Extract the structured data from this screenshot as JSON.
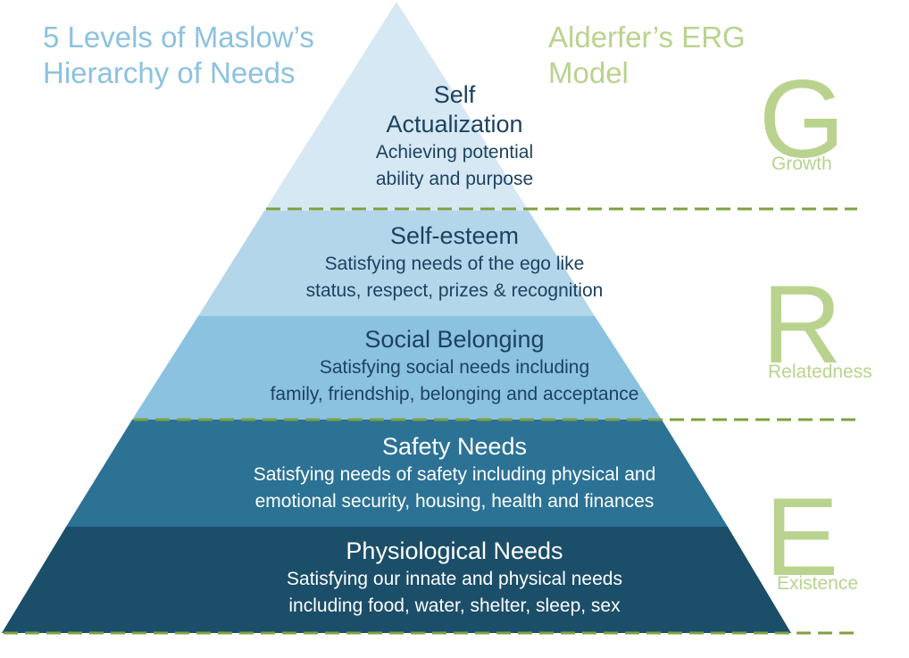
{
  "titles": {
    "maslow": "5 Levels of Maslow’s Hierarchy of Needs",
    "erg": "Alderfer’s ERG Model"
  },
  "levels": [
    {
      "title": "Self Actualization",
      "description": [
        "Achieving potential",
        "ability and purpose"
      ],
      "color": "#d6e8f4"
    },
    {
      "title": "Self-esteem",
      "description": [
        "Satisfying needs of the ego like",
        "status, respect, prizes & recognition"
      ],
      "color": "#b4d6ea"
    },
    {
      "title": "Social Belonging",
      "description": [
        "Satisfying social needs including",
        "family, friendship, belonging and acceptance"
      ],
      "color": "#8ac2e0"
    },
    {
      "title": "Safety Needs",
      "description": [
        "Satisfying needs of safety including physical and",
        "emotional security, housing, health and finances"
      ],
      "color": "#2b7295"
    },
    {
      "title": "Physiological Needs",
      "description": [
        "Satisfying our innate and physical needs",
        "including food, water, shelter, sleep, sex"
      ],
      "color": "#1b4e69"
    }
  ],
  "erg": [
    {
      "letter": "G",
      "label": "Growth"
    },
    {
      "letter": "R",
      "label": "Relatedness"
    },
    {
      "letter": "E",
      "label": "Existence"
    }
  ],
  "colors": {
    "divider": "#7fa03f",
    "maslow_text": "#8cc2e1",
    "erg_text": "#b9d38e",
    "dark_label_text": "#1d4260"
  }
}
